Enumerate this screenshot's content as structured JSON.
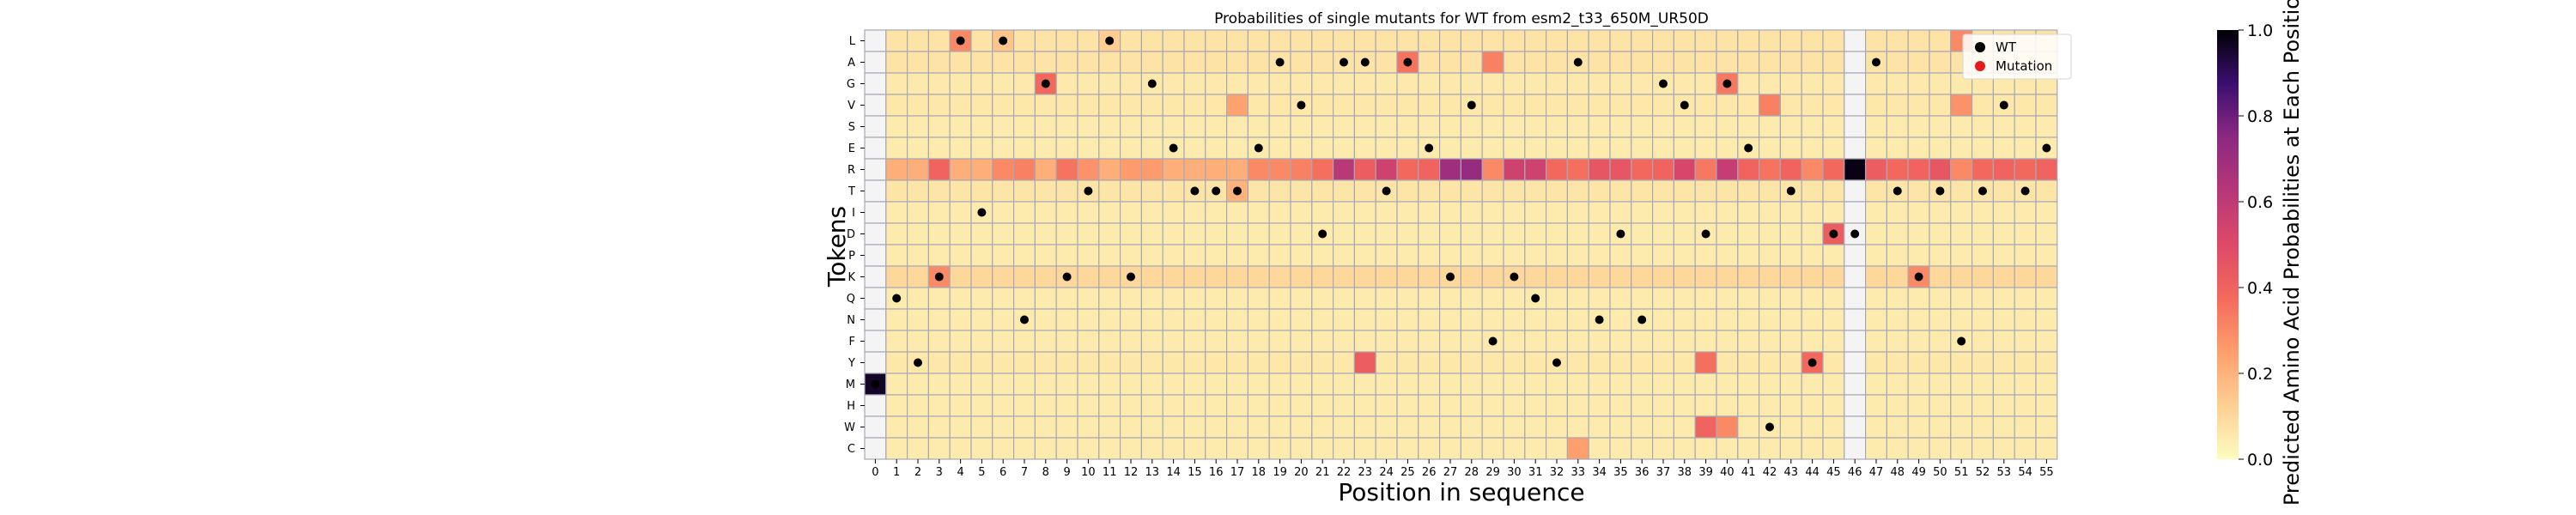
{
  "chart_data": {
    "type": "heatmap",
    "title": "Probabilities of single mutants for WT from esm2_t33_650M_UR50D",
    "xlabel": "Position in sequence",
    "ylabel": "Tokens",
    "colorbar_label": "Predicted Amino Acid Probabilities at Each Position",
    "colorbar_ticks": [
      "0.0",
      "0.2",
      "0.4",
      "0.6",
      "0.8",
      "1.0"
    ],
    "colorbar_range": [
      0,
      1
    ],
    "colormap": "magma_r",
    "x": [
      "0",
      "1",
      "2",
      "3",
      "4",
      "5",
      "6",
      "7",
      "8",
      "9",
      "10",
      "11",
      "12",
      "13",
      "14",
      "15",
      "16",
      "17",
      "18",
      "19",
      "20",
      "21",
      "22",
      "23",
      "24",
      "25",
      "26",
      "27",
      "28",
      "29",
      "30",
      "31",
      "32",
      "33",
      "34",
      "35",
      "36",
      "37",
      "38",
      "39",
      "40",
      "41",
      "42",
      "43",
      "44",
      "45",
      "46",
      "47",
      "48",
      "49",
      "50",
      "51",
      "52",
      "53",
      "54",
      "55"
    ],
    "tokens": [
      "L",
      "A",
      "G",
      "V",
      "S",
      "E",
      "R",
      "T",
      "I",
      "D",
      "P",
      "K",
      "Q",
      "N",
      "F",
      "Y",
      "M",
      "H",
      "W",
      "C"
    ],
    "legend": [
      {
        "label": "WT",
        "color": "#000000"
      },
      {
        "label": "Mutation",
        "color": "#e41a1c"
      }
    ],
    "legend_position": "top-right",
    "background_value": 0.05,
    "token_offsets": {
      "R": 0.16,
      "K": 0.05,
      "A": 0.02,
      "L": 0.02,
      "T": 0.015,
      "Y": 0.01,
      "V": 0.01,
      "G": 0.005
    },
    "position_uncertain": [
      0,
      46
    ],
    "values": [
      [
        "L",
        4,
        0.3
      ],
      [
        "L",
        6,
        0.15
      ],
      [
        "L",
        11,
        0.13
      ],
      [
        "L",
        51,
        0.3
      ],
      [
        "A",
        25,
        0.35
      ],
      [
        "A",
        29,
        0.32
      ],
      [
        "G",
        8,
        0.38
      ],
      [
        "G",
        40,
        0.34
      ],
      [
        "V",
        17,
        0.24
      ],
      [
        "V",
        42,
        0.32
      ],
      [
        "V",
        51,
        0.28
      ],
      [
        "R",
        3,
        0.4
      ],
      [
        "R",
        6,
        0.3
      ],
      [
        "R",
        7,
        0.32
      ],
      [
        "R",
        9,
        0.35
      ],
      [
        "R",
        10,
        0.28
      ],
      [
        "R",
        12,
        0.26
      ],
      [
        "R",
        13,
        0.26
      ],
      [
        "R",
        18,
        0.3
      ],
      [
        "R",
        19,
        0.3
      ],
      [
        "R",
        20,
        0.32
      ],
      [
        "R",
        21,
        0.36
      ],
      [
        "R",
        22,
        0.62
      ],
      [
        "R",
        23,
        0.42
      ],
      [
        "R",
        24,
        0.55
      ],
      [
        "R",
        25,
        0.38
      ],
      [
        "R",
        26,
        0.4
      ],
      [
        "R",
        27,
        0.7
      ],
      [
        "R",
        28,
        0.72
      ],
      [
        "R",
        29,
        0.3
      ],
      [
        "R",
        30,
        0.55
      ],
      [
        "R",
        31,
        0.55
      ],
      [
        "R",
        32,
        0.38
      ],
      [
        "R",
        33,
        0.36
      ],
      [
        "R",
        34,
        0.45
      ],
      [
        "R",
        35,
        0.45
      ],
      [
        "R",
        36,
        0.38
      ],
      [
        "R",
        37,
        0.4
      ],
      [
        "R",
        38,
        0.52
      ],
      [
        "R",
        39,
        0.34
      ],
      [
        "R",
        40,
        0.58
      ],
      [
        "R",
        41,
        0.4
      ],
      [
        "R",
        42,
        0.35
      ],
      [
        "R",
        43,
        0.4
      ],
      [
        "R",
        44,
        0.3
      ],
      [
        "R",
        45,
        0.38
      ],
      [
        "R",
        46,
        0.98
      ],
      [
        "R",
        47,
        0.42
      ],
      [
        "R",
        48,
        0.38
      ],
      [
        "R",
        49,
        0.4
      ],
      [
        "R",
        50,
        0.45
      ],
      [
        "R",
        51,
        0.3
      ],
      [
        "R",
        52,
        0.38
      ],
      [
        "R",
        53,
        0.4
      ],
      [
        "R",
        54,
        0.38
      ],
      [
        "R",
        55,
        0.4
      ],
      [
        "T",
        17,
        0.2
      ],
      [
        "D",
        45,
        0.42
      ],
      [
        "K",
        3,
        0.3
      ],
      [
        "K",
        49,
        0.3
      ],
      [
        "Y",
        23,
        0.42
      ],
      [
        "Y",
        39,
        0.36
      ],
      [
        "Y",
        44,
        0.38
      ],
      [
        "M",
        0,
        0.96
      ],
      [
        "W",
        39,
        0.4
      ],
      [
        "W",
        40,
        0.3
      ],
      [
        "C",
        33,
        0.25
      ]
    ],
    "wt": [
      [
        0,
        "M"
      ],
      [
        1,
        "Q"
      ],
      [
        2,
        "Y"
      ],
      [
        3,
        "K"
      ],
      [
        4,
        "L"
      ],
      [
        5,
        "I"
      ],
      [
        6,
        "L"
      ],
      [
        7,
        "N"
      ],
      [
        8,
        "G"
      ],
      [
        9,
        "K"
      ],
      [
        10,
        "T"
      ],
      [
        11,
        "L"
      ],
      [
        12,
        "K"
      ],
      [
        13,
        "G"
      ],
      [
        14,
        "E"
      ],
      [
        15,
        "T"
      ],
      [
        16,
        "T"
      ],
      [
        17,
        "T"
      ],
      [
        18,
        "E"
      ],
      [
        19,
        "A"
      ],
      [
        20,
        "V"
      ],
      [
        21,
        "D"
      ],
      [
        22,
        "A"
      ],
      [
        23,
        "A"
      ],
      [
        24,
        "T"
      ],
      [
        25,
        "A"
      ],
      [
        26,
        "E"
      ],
      [
        27,
        "K"
      ],
      [
        28,
        "V"
      ],
      [
        29,
        "F"
      ],
      [
        30,
        "K"
      ],
      [
        31,
        "Q"
      ],
      [
        32,
        "Y"
      ],
      [
        33,
        "A"
      ],
      [
        34,
        "N"
      ],
      [
        35,
        "D"
      ],
      [
        36,
        "N"
      ],
      [
        37,
        "G"
      ],
      [
        38,
        "V"
      ],
      [
        39,
        "D"
      ],
      [
        40,
        "G"
      ],
      [
        41,
        "E"
      ],
      [
        42,
        "W"
      ],
      [
        43,
        "T"
      ],
      [
        44,
        "Y"
      ],
      [
        45,
        "D"
      ],
      [
        46,
        "D"
      ],
      [
        47,
        "A"
      ],
      [
        48,
        "T"
      ],
      [
        49,
        "K"
      ],
      [
        50,
        "T"
      ],
      [
        51,
        "F"
      ],
      [
        52,
        "T"
      ],
      [
        53,
        "V"
      ],
      [
        54,
        "T"
      ],
      [
        55,
        "E"
      ]
    ]
  }
}
